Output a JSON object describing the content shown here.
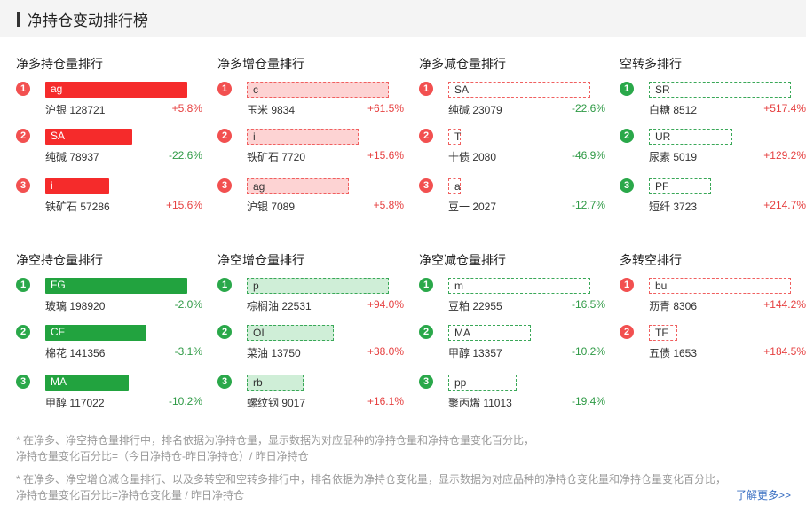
{
  "header": {
    "title": "净持仓变动排行榜"
  },
  "sections": [
    {
      "columns": [
        {
          "title": "净多持仓量排行",
          "color": "red",
          "style": "solid",
          "items": [
            {
              "rank": "1",
              "code": "ag",
              "name": "沪银 128721",
              "pct": "+5.8%",
              "dir": "up",
              "level": 1.0
            },
            {
              "rank": "2",
              "code": "SA",
              "name": "纯碱 78937",
              "pct": "-22.6%",
              "dir": "down",
              "level": 0.61
            },
            {
              "rank": "3",
              "code": "i",
              "name": "铁矿石 57286",
              "pct": "+15.6%",
              "dir": "up",
              "level": 0.45
            }
          ]
        },
        {
          "title": "净多增仓量排行",
          "color": "red",
          "style": "fill",
          "items": [
            {
              "rank": "1",
              "code": "c",
              "name": "玉米 9834",
              "pct": "+61.5%",
              "dir": "up",
              "level": 1.0
            },
            {
              "rank": "2",
              "code": "i",
              "name": "铁矿石 7720",
              "pct": "+15.6%",
              "dir": "up",
              "level": 0.79
            },
            {
              "rank": "3",
              "code": "ag",
              "name": "沪银 7089",
              "pct": "+5.8%",
              "dir": "up",
              "level": 0.72
            }
          ]
        },
        {
          "title": "净多减仓量排行",
          "color": "red",
          "style": "dash",
          "items": [
            {
              "rank": "1",
              "code": "SA",
              "name": "纯碱 23079",
              "pct": "-22.6%",
              "dir": "down",
              "level": 1.0
            },
            {
              "rank": "2",
              "code": "T",
              "name": "十债 2080",
              "pct": "-46.9%",
              "dir": "down",
              "level": 0.09
            },
            {
              "rank": "3",
              "code": "a",
              "name": "豆一 2027",
              "pct": "-12.7%",
              "dir": "down",
              "level": 0.09
            }
          ]
        },
        {
          "title": "空转多排行",
          "color": "green",
          "style": "dash",
          "items": [
            {
              "rank": "1",
              "code": "SR",
              "name": "白糖 8512",
              "pct": "+517.4%",
              "dir": "up",
              "level": 1.0
            },
            {
              "rank": "2",
              "code": "UR",
              "name": "尿素 5019",
              "pct": "+129.2%",
              "dir": "up",
              "level": 0.59
            },
            {
              "rank": "3",
              "code": "PF",
              "name": "短纤 3723",
              "pct": "+214.7%",
              "dir": "up",
              "level": 0.44
            }
          ]
        }
      ]
    },
    {
      "columns": [
        {
          "title": "净空持仓量排行",
          "color": "green",
          "style": "solid",
          "items": [
            {
              "rank": "1",
              "code": "FG",
              "name": "玻璃 198920",
              "pct": "-2.0%",
              "dir": "down",
              "level": 1.0
            },
            {
              "rank": "2",
              "code": "CF",
              "name": "棉花 141356",
              "pct": "-3.1%",
              "dir": "down",
              "level": 0.71
            },
            {
              "rank": "3",
              "code": "MA",
              "name": "甲醇 117022",
              "pct": "-10.2%",
              "dir": "down",
              "level": 0.59
            }
          ]
        },
        {
          "title": "净空增仓量排行",
          "color": "green",
          "style": "fill",
          "items": [
            {
              "rank": "1",
              "code": "p",
              "name": "棕榈油 22531",
              "pct": "+94.0%",
              "dir": "up",
              "level": 1.0
            },
            {
              "rank": "2",
              "code": "OI",
              "name": "菜油 13750",
              "pct": "+38.0%",
              "dir": "up",
              "level": 0.61
            },
            {
              "rank": "3",
              "code": "rb",
              "name": "螺纹钢 9017",
              "pct": "+16.1%",
              "dir": "up",
              "level": 0.4
            }
          ]
        },
        {
          "title": "净空减仓量排行",
          "color": "green",
          "style": "dash",
          "items": [
            {
              "rank": "1",
              "code": "m",
              "name": "豆粕 22955",
              "pct": "-16.5%",
              "dir": "down",
              "level": 1.0
            },
            {
              "rank": "2",
              "code": "MA",
              "name": "甲醇 13357",
              "pct": "-10.2%",
              "dir": "down",
              "level": 0.58
            },
            {
              "rank": "3",
              "code": "pp",
              "name": "聚丙烯 11013",
              "pct": "-19.4%",
              "dir": "down",
              "level": 0.48
            }
          ]
        },
        {
          "title": "多转空排行",
          "color": "red",
          "style": "dash",
          "items": [
            {
              "rank": "1",
              "code": "bu",
              "name": "沥青 8306",
              "pct": "+144.2%",
              "dir": "up",
              "level": 1.0
            },
            {
              "rank": "2",
              "code": "TF",
              "name": "五债 1653",
              "pct": "+184.5%",
              "dir": "up",
              "level": 0.2
            }
          ]
        }
      ]
    }
  ],
  "notes": {
    "note1_line1": "* 在净多、净空持仓量排行中，排名依据为净持仓量，显示数据为对应品种的净持仓量和净持仓量变化百分比，",
    "note1_line2": "净持仓量变化百分比=（今日净持仓-昨日净持仓）/ 昨日净持仓",
    "note2_line1": "* 在净多、净空增仓减仓量排行、以及多转空和空转多排行中，排名依据为净持仓变化量，显示数据为对应品种的净持仓变化量和净持仓量变化百分比，",
    "note2_line2": "净持仓量变化百分比=净持仓变化量 / 昨日净持仓"
  },
  "more_link": "了解更多>>"
}
